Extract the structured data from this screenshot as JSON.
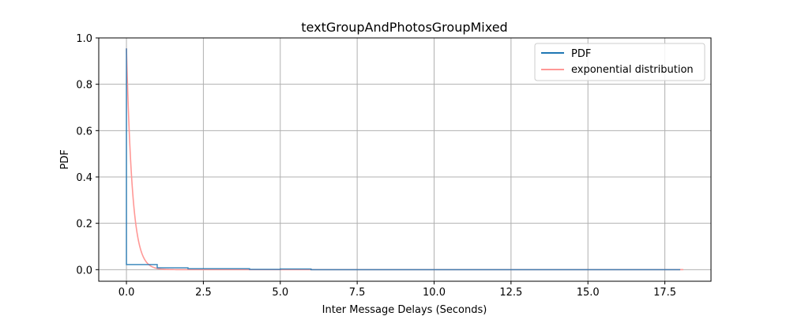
{
  "chart_data": {
    "type": "line",
    "title": "textGroupAndPhotosGroupMixed",
    "xlabel": "Inter Message Delays (Seconds)",
    "ylabel": "PDF",
    "xlim": [
      -0.9,
      19.0
    ],
    "ylim": [
      -0.05,
      1.0
    ],
    "xticks": [
      0.0,
      2.5,
      5.0,
      7.5,
      10.0,
      12.5,
      15.0,
      17.5
    ],
    "xtick_labels": [
      "0.0",
      "2.5",
      "5.0",
      "7.5",
      "10.0",
      "12.5",
      "15.0",
      "17.5"
    ],
    "yticks": [
      0.0,
      0.2,
      0.4,
      0.6,
      0.8,
      1.0
    ],
    "ytick_labels": [
      "0.0",
      "0.2",
      "0.4",
      "0.6",
      "0.8",
      "1.0"
    ],
    "grid": true,
    "legend_position": "top-right",
    "series": [
      {
        "name": "PDF",
        "color": "#1f77b4",
        "style": "step",
        "x": [
          0.0,
          0.0,
          1.0,
          1.0,
          2.0,
          2.0,
          4.0,
          4.0,
          5.0,
          5.0,
          6.0,
          6.0,
          18.0
        ],
        "y": [
          0.955,
          0.022,
          0.022,
          0.008,
          0.008,
          0.004,
          0.004,
          0.001,
          0.001,
          0.003,
          0.003,
          0.0,
          0.0
        ]
      },
      {
        "name": "exponential distribution",
        "color": "#ff9896",
        "style": "line",
        "rate": 5.2,
        "y0": 0.955,
        "x_range": [
          0.0,
          18.1
        ]
      }
    ]
  }
}
